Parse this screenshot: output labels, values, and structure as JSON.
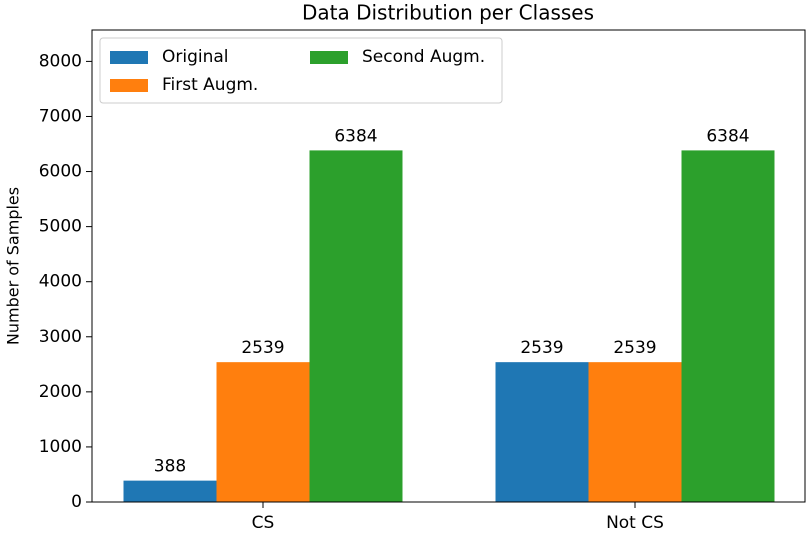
{
  "chart_data": {
    "type": "bar",
    "title": "Data Distribution per Classes",
    "y_label": "Number of Samples",
    "categories": [
      "CS",
      "Not CS"
    ],
    "series": [
      {
        "name": "Original",
        "color": "#1f77b4",
        "values": [
          388,
          2539
        ]
      },
      {
        "name": "First Augm.",
        "color": "#ff7f0e",
        "values": [
          2539,
          2539
        ]
      },
      {
        "name": "Second Augm.",
        "color": "#2ca02c",
        "values": [
          6384,
          6384
        ]
      }
    ],
    "ylim": [
      0,
      8570
    ],
    "yticks": [
      0,
      1000,
      2000,
      3000,
      4000,
      5000,
      6000,
      7000,
      8000
    ],
    "legend": "upper left"
  }
}
